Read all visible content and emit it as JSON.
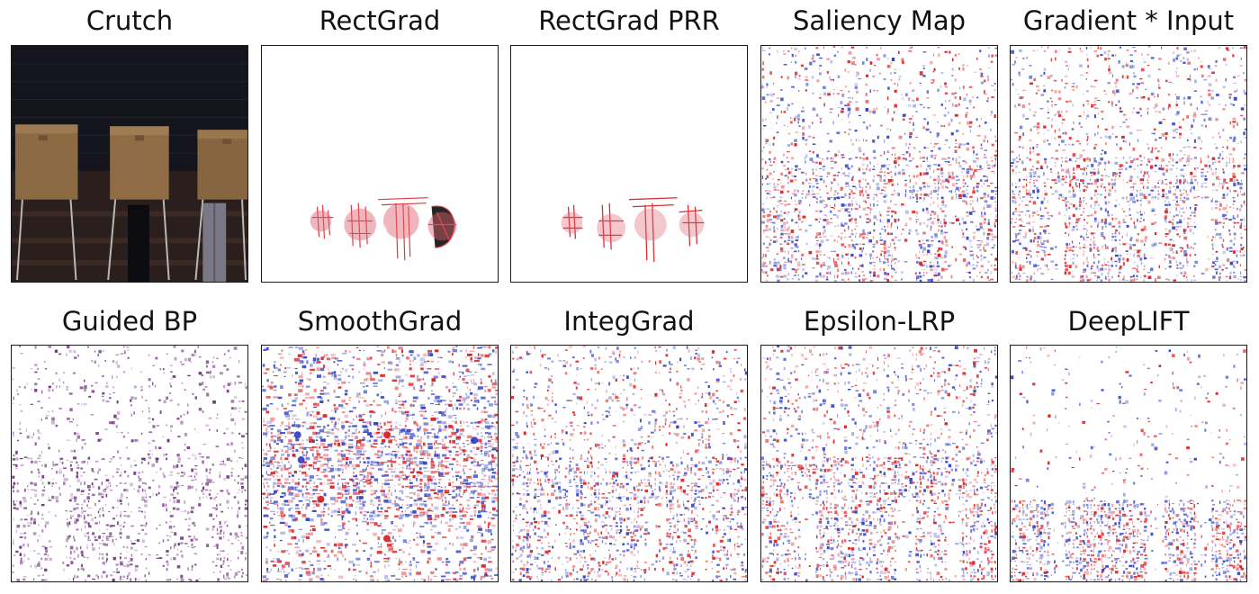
{
  "figure": {
    "panels": [
      {
        "title": "Crutch",
        "kind": "photo",
        "subject": "voting-booths-photo"
      },
      {
        "title": "RectGrad",
        "kind": "sparse-heatmap"
      },
      {
        "title": "RectGrad PRR",
        "kind": "sparse-heatmap"
      },
      {
        "title": "Saliency Map",
        "kind": "dense-heatmap"
      },
      {
        "title": "Gradient * Input",
        "kind": "dense-heatmap"
      },
      {
        "title": "Guided BP",
        "kind": "purple-heatmap"
      },
      {
        "title": "SmoothGrad",
        "kind": "dense-heatmap"
      },
      {
        "title": "IntegGrad",
        "kind": "dense-heatmap"
      },
      {
        "title": "Epsilon-LRP",
        "kind": "dense-heatmap"
      },
      {
        "title": "DeepLIFT",
        "kind": "dense-heatmap"
      }
    ],
    "colors": {
      "positive": "#d7191c",
      "negative": "#2b3cc4",
      "guided": "#6a2a7a",
      "frame": "#1a1a1a"
    }
  }
}
